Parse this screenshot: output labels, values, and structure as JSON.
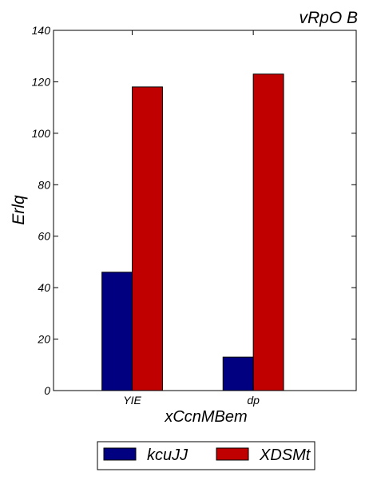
{
  "chart_data": {
    "type": "bar",
    "title": "vRpO B",
    "xlabel": "xCcnMBem",
    "ylabel": "Erlq",
    "categories": [
      "YIE",
      "dp"
    ],
    "series": [
      {
        "name": "kcuJJ",
        "values": [
          46,
          13
        ],
        "color": "#000080"
      },
      {
        "name": "XDSMt",
        "values": [
          118,
          123
        ],
        "color": "#c00000"
      }
    ],
    "ylim": [
      0,
      140
    ],
    "yticks": [
      0,
      20,
      40,
      60,
      80,
      100,
      120,
      140
    ],
    "grid": false,
    "legend_position": "bottom-center"
  }
}
